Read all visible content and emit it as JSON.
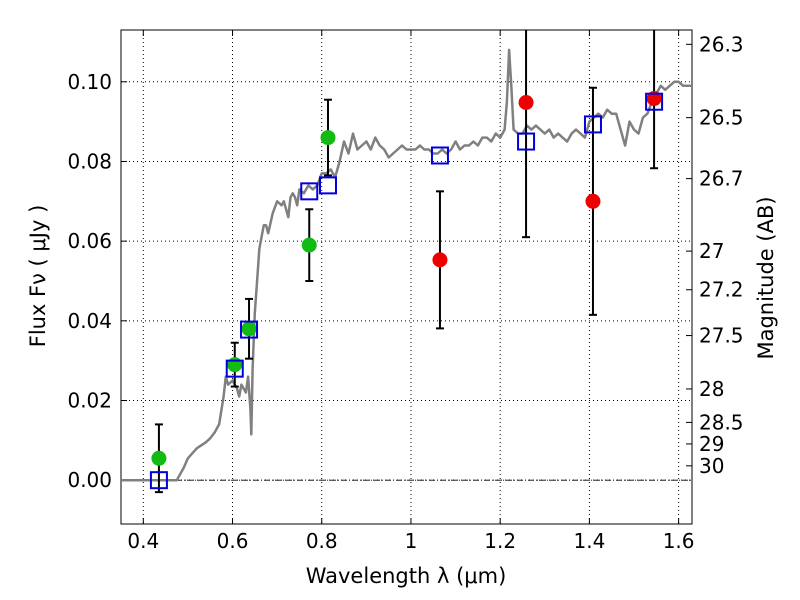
{
  "chart_data": {
    "type": "scatter",
    "xlabel": "Wavelength  λ (μm)",
    "ylabel": "Flux  Fν  ( μJy )",
    "y2label": "Magnitude (AB)",
    "xlim": [
      0.35,
      1.63
    ],
    "ylim": [
      -0.011,
      0.113
    ],
    "grid": true,
    "x_ticks": [
      0.4,
      0.6,
      0.8,
      1.0,
      1.2,
      1.4,
      1.6
    ],
    "x_tick_labels": [
      "0.4",
      "0.6",
      "0.8",
      "1",
      "1.2",
      "1.4",
      "1.6"
    ],
    "y_ticks": [
      0.0,
      0.02,
      0.04,
      0.06,
      0.08,
      0.1
    ],
    "y_tick_labels": [
      "0.00",
      "0.02",
      "0.04",
      "0.06",
      "0.08",
      "0.10"
    ],
    "magnitude_ticks": [
      {
        "label": "26.3",
        "flux": 0.1094
      },
      {
        "label": "26.5",
        "flux": 0.091
      },
      {
        "label": "26.7",
        "flux": 0.0757
      },
      {
        "label": "27",
        "flux": 0.0575
      },
      {
        "label": "27.2",
        "flux": 0.0478
      },
      {
        "label": "27.5",
        "flux": 0.0363
      },
      {
        "label": "28",
        "flux": 0.0229
      },
      {
        "label": "28.5",
        "flux": 0.0145
      },
      {
        "label": "29",
        "flux": 0.0091
      },
      {
        "label": "30",
        "flux": 0.0036
      }
    ],
    "series": [
      {
        "marker": "circle",
        "color": "#11bb11",
        "points": [
          {
            "x": 0.435,
            "y": 0.0055,
            "err_lo": 0.0085,
            "err_hi": 0.0085
          },
          {
            "x": 0.605,
            "y": 0.029,
            "err_lo": 0.0055,
            "err_hi": 0.0055
          },
          {
            "x": 0.637,
            "y": 0.038,
            "err_lo": 0.0075,
            "err_hi": 0.0075
          },
          {
            "x": 0.772,
            "y": 0.059,
            "err_lo": 0.009,
            "err_hi": 0.009
          },
          {
            "x": 0.814,
            "y": 0.086,
            "err_lo": 0.0095,
            "err_hi": 0.0095
          }
        ]
      },
      {
        "marker": "circle",
        "color": "#ee0000",
        "points": [
          {
            "x": 1.065,
            "y": 0.0553,
            "err_lo": 0.0172,
            "err_hi": 0.0172
          },
          {
            "x": 1.258,
            "y": 0.0948,
            "err_lo": 0.0338,
            "err_hi": 0.0338
          },
          {
            "x": 1.408,
            "y": 0.07,
            "err_lo": 0.0285,
            "err_hi": 0.0285
          },
          {
            "x": 1.545,
            "y": 0.0958,
            "err_lo": 0.0175,
            "err_hi": 0.0175
          }
        ]
      },
      {
        "marker": "square",
        "color": "#0000dd",
        "points": [
          {
            "x": 0.435,
            "y": 0.0
          },
          {
            "x": 0.605,
            "y": 0.028
          },
          {
            "x": 0.637,
            "y": 0.0378
          },
          {
            "x": 0.772,
            "y": 0.0725
          },
          {
            "x": 0.814,
            "y": 0.074
          },
          {
            "x": 1.065,
            "y": 0.0815
          },
          {
            "x": 1.258,
            "y": 0.085
          },
          {
            "x": 1.408,
            "y": 0.0893
          },
          {
            "x": 1.545,
            "y": 0.095
          }
        ]
      },
      {
        "marker": "line",
        "color": "#808080",
        "x": [
          0.35,
          0.46,
          0.475,
          0.49,
          0.5,
          0.52,
          0.54,
          0.55,
          0.56,
          0.57,
          0.58,
          0.585,
          0.59,
          0.6,
          0.61,
          0.615,
          0.62,
          0.63,
          0.635,
          0.64,
          0.642,
          0.645,
          0.65,
          0.655,
          0.66,
          0.665,
          0.67,
          0.675,
          0.68,
          0.69,
          0.7,
          0.71,
          0.715,
          0.72,
          0.725,
          0.73,
          0.735,
          0.74,
          0.745,
          0.75,
          0.76,
          0.77,
          0.78,
          0.79,
          0.8,
          0.81,
          0.82,
          0.83,
          0.84,
          0.85,
          0.86,
          0.87,
          0.88,
          0.89,
          0.9,
          0.91,
          0.92,
          0.93,
          0.94,
          0.95,
          0.96,
          0.97,
          0.98,
          0.99,
          1.0,
          1.01,
          1.02,
          1.03,
          1.04,
          1.05,
          1.06,
          1.07,
          1.08,
          1.09,
          1.1,
          1.11,
          1.12,
          1.13,
          1.14,
          1.15,
          1.16,
          1.17,
          1.18,
          1.19,
          1.2,
          1.21,
          1.215,
          1.22,
          1.225,
          1.23,
          1.24,
          1.25,
          1.26,
          1.27,
          1.28,
          1.29,
          1.3,
          1.31,
          1.32,
          1.33,
          1.34,
          1.35,
          1.36,
          1.37,
          1.38,
          1.39,
          1.4,
          1.41,
          1.42,
          1.43,
          1.44,
          1.45,
          1.46,
          1.47,
          1.48,
          1.49,
          1.5,
          1.51,
          1.52,
          1.53,
          1.54,
          1.55,
          1.56,
          1.57,
          1.58,
          1.59,
          1.6,
          1.61,
          1.62,
          1.63
        ],
        "y": [
          0.0,
          0.0,
          0.0,
          0.003,
          0.0055,
          0.008,
          0.0095,
          0.0105,
          0.012,
          0.014,
          0.021,
          0.026,
          0.024,
          0.025,
          0.023,
          0.021,
          0.024,
          0.022,
          0.026,
          0.018,
          0.0115,
          0.028,
          0.042,
          0.05,
          0.058,
          0.061,
          0.064,
          0.064,
          0.062,
          0.067,
          0.07,
          0.069,
          0.07,
          0.068,
          0.066,
          0.071,
          0.072,
          0.071,
          0.069,
          0.073,
          0.072,
          0.074,
          0.073,
          0.074,
          0.077,
          0.077,
          0.078,
          0.076,
          0.08,
          0.085,
          0.082,
          0.087,
          0.083,
          0.084,
          0.085,
          0.083,
          0.086,
          0.084,
          0.083,
          0.081,
          0.082,
          0.083,
          0.084,
          0.083,
          0.083,
          0.083,
          0.084,
          0.083,
          0.083,
          0.082,
          0.082,
          0.083,
          0.082,
          0.083,
          0.085,
          0.083,
          0.084,
          0.084,
          0.085,
          0.084,
          0.086,
          0.086,
          0.085,
          0.087,
          0.086,
          0.088,
          0.095,
          0.108,
          0.099,
          0.088,
          0.087,
          0.087,
          0.089,
          0.088,
          0.089,
          0.088,
          0.087,
          0.088,
          0.086,
          0.087,
          0.086,
          0.085,
          0.087,
          0.088,
          0.087,
          0.086,
          0.09,
          0.091,
          0.092,
          0.091,
          0.093,
          0.092,
          0.092,
          0.088,
          0.084,
          0.09,
          0.088,
          0.087,
          0.091,
          0.092,
          0.095,
          0.097,
          0.099,
          0.098,
          0.099,
          0.1,
          0.1,
          0.099,
          0.099,
          0.099
        ]
      }
    ]
  }
}
